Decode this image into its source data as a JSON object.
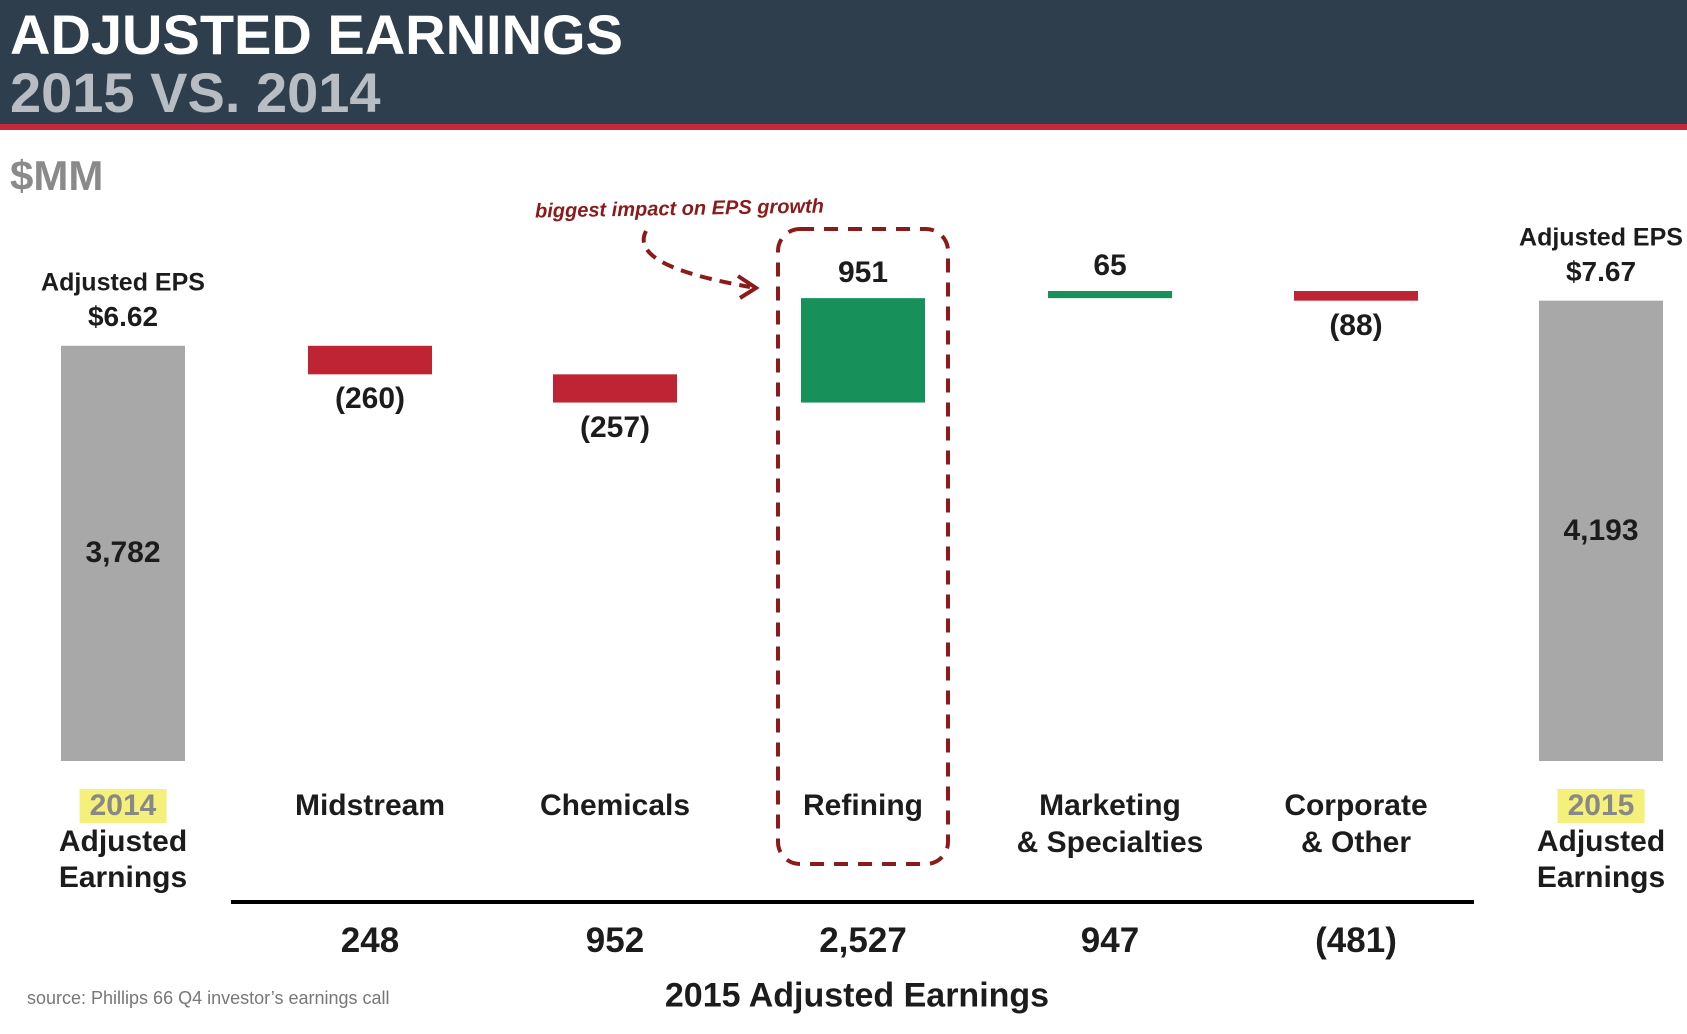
{
  "header": {
    "title": "ADJUSTED EARNINGS",
    "subtitle": "2015 VS. 2014"
  },
  "chart_data": {
    "type": "waterfall",
    "unit": "$MM",
    "annotation": "biggest impact on EPS growth",
    "highlight_index": 2,
    "start": {
      "year": "2014",
      "label": "Adjusted Earnings",
      "eps_label": "Adjusted EPS",
      "eps": "$6.62",
      "value": 3782,
      "value_label": "3,782"
    },
    "end": {
      "year": "2015",
      "label": "Adjusted Earnings",
      "eps_label": "Adjusted EPS",
      "eps": "$7.67",
      "value": 4193,
      "value_label": "4,193"
    },
    "categories": [
      [
        "Midstream"
      ],
      [
        "Chemicals"
      ],
      [
        "Refining"
      ],
      [
        "Marketing",
        "& Specialties"
      ],
      [
        "Corporate",
        "& Other"
      ]
    ],
    "values": [
      -260,
      -257,
      951,
      65,
      -88
    ],
    "value_labels": [
      "(260)",
      "(257)",
      "951",
      "65",
      "(88)"
    ],
    "colors": {
      "positive": "#17905a",
      "negative": "#be2433",
      "total": "#a8a8a8"
    },
    "table": {
      "title": "2015 Adjusted Earnings",
      "values": [
        248,
        952,
        2527,
        947,
        -481
      ],
      "value_labels": [
        "248",
        "952",
        "2,527",
        "947",
        "(481)"
      ]
    }
  },
  "source": "source: Phillips 66 Q4 investor’s earnings call"
}
